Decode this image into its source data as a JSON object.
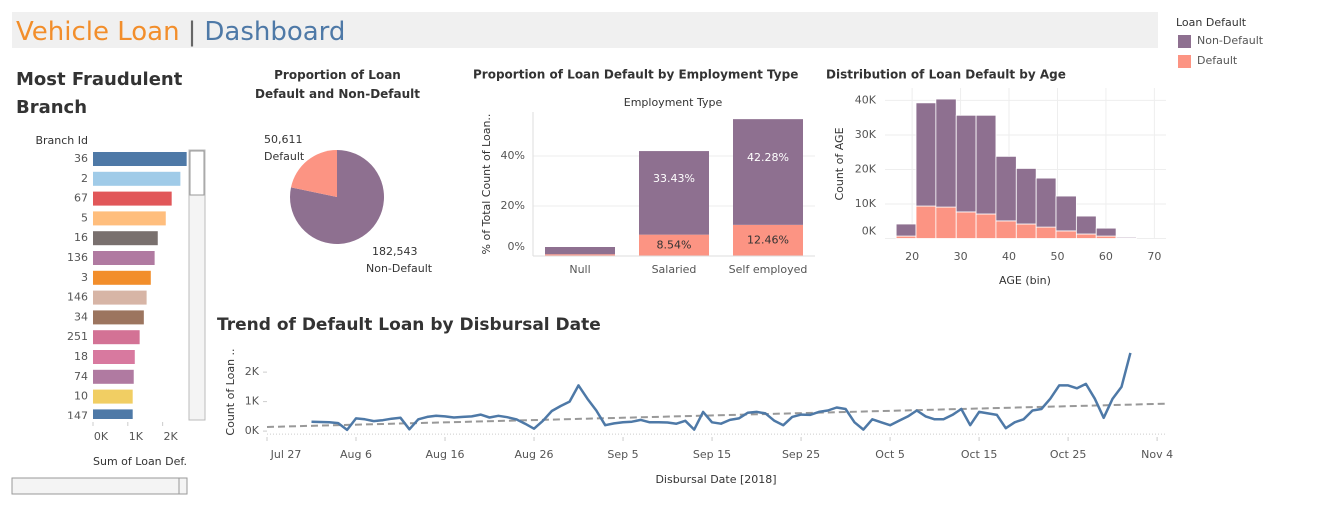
{
  "header": {
    "title": "Vehicle Loan",
    "separator": "|",
    "subtitle": "Dashboard"
  },
  "legend": {
    "title": "Loan Default",
    "items": [
      {
        "name": "Non-Default",
        "color": "#8e7090"
      },
      {
        "name": "Default",
        "color": "#fc9483"
      }
    ]
  },
  "chart_data": [
    {
      "type": "hbar",
      "title": "Most Fraudulent Branch",
      "y_label": "Branch Id",
      "x_label": "Sum of Loan Def.",
      "categories": [
        "36",
        "2",
        "67",
        "5",
        "16",
        "136",
        "3",
        "146",
        "34",
        "251",
        "18",
        "74",
        "10",
        "147"
      ],
      "values": [
        2690,
        2510,
        2260,
        2090,
        1860,
        1770,
        1660,
        1540,
        1460,
        1340,
        1200,
        1170,
        1140,
        1140
      ],
      "colors": [
        "#4e79a7",
        "#a0cbe8",
        "#e15759",
        "#ffbe7d",
        "#79706e",
        "#b07aa1",
        "#f28e2b",
        "#d7b5a6",
        "#9c755f",
        "#d37295",
        "#d8799f",
        "#b07aa1",
        "#f1ce63",
        "#4e79a7"
      ],
      "xlim": [
        0,
        2700
      ],
      "xticks": [
        {
          "value": 0,
          "label": "0K"
        },
        {
          "value": 1000,
          "label": "1K"
        },
        {
          "value": 2000,
          "label": "2K"
        }
      ]
    },
    {
      "type": "pie",
      "title": "Proportion of Loan Default and Non-Default",
      "categories": [
        "Non-Default",
        "Default"
      ],
      "values": [
        182543,
        50611
      ],
      "value_labels": [
        "182,543",
        "50,611"
      ],
      "colors": [
        "#8e7090",
        "#fc9483"
      ]
    },
    {
      "type": "stacked_bar",
      "title": "Proportion of Loan Default by Employment Type",
      "column_header": "Employment Type",
      "y_label": "% of Total Count of Loan..",
      "categories": [
        "Null",
        "Salaried",
        "Self employed"
      ],
      "series": [
        {
          "name": "Non-Default",
          "color": "#8e7090",
          "values": [
            2.9,
            33.43,
            42.28
          ],
          "value_labels": [
            null,
            "33.43%",
            "42.28%"
          ]
        },
        {
          "name": "Default",
          "color": "#fc9483",
          "values": [
            0.7,
            8.54,
            12.46
          ],
          "value_labels": [
            null,
            "8.54%",
            "12.46%"
          ]
        }
      ],
      "ylim": [
        0,
        57.6
      ],
      "yticks": [
        {
          "value": 0,
          "label": "0%"
        },
        {
          "value": 20,
          "label": "20%"
        },
        {
          "value": 40,
          "label": "40%"
        }
      ],
      "grid": true
    },
    {
      "type": "histogram",
      "title": "Distribution of Loan Default by Age",
      "x_label": "AGE (bin)",
      "y_label": "Count of AGE",
      "bins": [
        16.7,
        20.8,
        24.9,
        29.1,
        33.2,
        37.3,
        41.5,
        45.6,
        49.7,
        53.9,
        58.0,
        62.1,
        66.3
      ],
      "series": [
        {
          "name": "Non-Default",
          "color": "#8e7090",
          "values": [
            3500,
            29900,
            31300,
            28000,
            28600,
            18700,
            16100,
            14200,
            10100,
            5200,
            2300,
            300
          ]
        },
        {
          "name": "Default",
          "color": "#fc9483",
          "values": [
            700,
            9400,
            9100,
            7700,
            7100,
            5100,
            4200,
            3300,
            2200,
            1300,
            700,
            100
          ]
        }
      ],
      "xlim": [
        14.4,
        72.4
      ],
      "xticks": [
        20,
        30,
        40,
        50,
        60,
        70
      ],
      "ylim": [
        0,
        43600
      ],
      "yticks": [
        {
          "value": 0,
          "label": "0K"
        },
        {
          "value": 10000,
          "label": "10K"
        },
        {
          "value": 20000,
          "label": "20K"
        },
        {
          "value": 30000,
          "label": "30K"
        },
        {
          "value": 40000,
          "label": "40K"
        }
      ],
      "grid": true
    },
    {
      "type": "line",
      "title": "Trend of Default Loan by Disbursal Date",
      "x_label": "Disbursal Date [2018]",
      "y_label": "Count of Loan ..",
      "color": "#4e79a7",
      "x": [
        "Aug 1",
        "Aug 2",
        "Aug 3",
        "Aug 4",
        "Aug 5",
        "Aug 6",
        "Aug 7",
        "Aug 8",
        "Aug 9",
        "Aug 10",
        "Aug 11",
        "Aug 12",
        "Aug 13",
        "Aug 14",
        "Aug 15",
        "Aug 16",
        "Aug 17",
        "Aug 18",
        "Aug 19",
        "Aug 20",
        "Aug 21",
        "Aug 22",
        "Aug 23",
        "Aug 24",
        "Aug 25",
        "Aug 26",
        "Aug 27",
        "Aug 28",
        "Aug 29",
        "Aug 30",
        "Aug 31",
        "Sep 1",
        "Sep 2",
        "Sep 3",
        "Sep 4",
        "Sep 5",
        "Sep 6",
        "Sep 7",
        "Sep 8",
        "Sep 9",
        "Sep 10",
        "Sep 11",
        "Sep 12",
        "Sep 13",
        "Sep 14",
        "Sep 15",
        "Sep 16",
        "Sep 17",
        "Sep 18",
        "Sep 19",
        "Sep 20",
        "Sep 21",
        "Sep 22",
        "Sep 23",
        "Sep 24",
        "Sep 25",
        "Sep 26",
        "Sep 27",
        "Sep 28",
        "Sep 29",
        "Sep 30",
        "Oct 1",
        "Oct 2",
        "Oct 3",
        "Oct 4",
        "Oct 5",
        "Oct 6",
        "Oct 7",
        "Oct 8",
        "Oct 9",
        "Oct 10",
        "Oct 11",
        "Oct 12",
        "Oct 13",
        "Oct 14",
        "Oct 15",
        "Oct 16",
        "Oct 17",
        "Oct 18",
        "Oct 19",
        "Oct 20",
        "Oct 21",
        "Oct 22",
        "Oct 23",
        "Oct 24",
        "Oct 25",
        "Oct 26",
        "Oct 27",
        "Oct 28",
        "Oct 29",
        "Oct 30",
        "Oct 31",
        "Nov 1"
      ],
      "values": [
        320,
        310,
        300,
        270,
        40,
        430,
        400,
        340,
        370,
        420,
        450,
        60,
        400,
        480,
        520,
        500,
        460,
        480,
        500,
        560,
        460,
        520,
        470,
        400,
        250,
        80,
        350,
        680,
        850,
        1000,
        1550,
        1100,
        700,
        200,
        260,
        300,
        320,
        380,
        300,
        300,
        290,
        250,
        350,
        50,
        650,
        300,
        250,
        380,
        430,
        620,
        650,
        600,
        350,
        200,
        480,
        560,
        550,
        650,
        700,
        800,
        750,
        300,
        50,
        400,
        300,
        200,
        350,
        500,
        700,
        500,
        400,
        400,
        550,
        750,
        200,
        650,
        600,
        550,
        100,
        300,
        400,
        700,
        750,
        1100,
        1550,
        1550,
        1450,
        1600,
        1100,
        450,
        1100,
        1500,
        2650
      ],
      "trend_line": {
        "x": [
          "Jul 27",
          "Nov 5"
        ],
        "values": [
          140,
          930
        ],
        "color": "#999999"
      },
      "xlim": [
        "Jul 27",
        "Nov 5"
      ],
      "xticks": [
        "Jul 27",
        "Aug 6",
        "Aug 16",
        "Aug 26",
        "Sep 5",
        "Sep 15",
        "Sep 25",
        "Oct 5",
        "Oct 15",
        "Oct 25",
        "Nov 4"
      ],
      "ylim": [
        -200,
        2750
      ],
      "yticks": [
        {
          "value": 0,
          "label": "0K"
        },
        {
          "value": 1000,
          "label": "1K"
        },
        {
          "value": 2000,
          "label": "2K"
        }
      ]
    }
  ]
}
